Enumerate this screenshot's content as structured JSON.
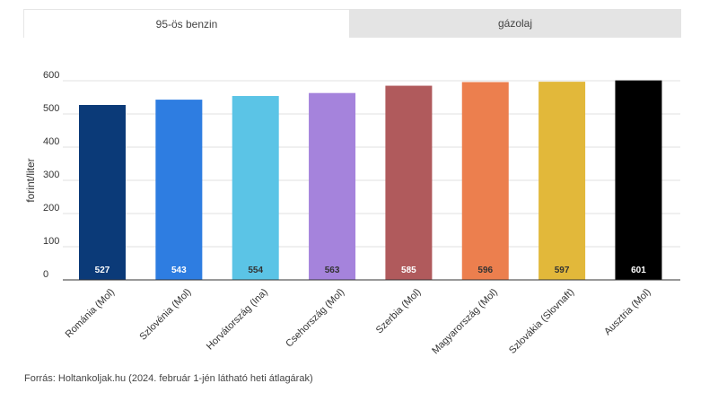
{
  "tabs": [
    {
      "label": "95-ös benzin",
      "active": true
    },
    {
      "label": "gázolaj",
      "active": false
    }
  ],
  "chart_data": {
    "type": "bar",
    "ylabel": "forint/liter",
    "ylim": [
      0,
      600
    ],
    "yticks": [
      0,
      100,
      200,
      300,
      400,
      500,
      600
    ],
    "grid": true,
    "categories": [
      "Románia (Mol)",
      "Szlovénia (Mol)",
      "Horvátország (Ina)",
      "Csehország (Mol)",
      "Szerbia (Mol)",
      "Magyarország (Mol)",
      "Szlovákia (Slovnaft)",
      "Ausztria (Mol)"
    ],
    "values": [
      527,
      543,
      554,
      563,
      585,
      596,
      597,
      601
    ],
    "colors": [
      "#0b3a78",
      "#2e7de1",
      "#5bc4e6",
      "#a583dc",
      "#b05a5c",
      "#ec7f4e",
      "#e2b83a",
      "#000000"
    ],
    "label_colors": [
      "#ffffff",
      "#ffffff",
      "#333333",
      "#333333",
      "#ffffff",
      "#333333",
      "#333333",
      "#ffffff"
    ]
  },
  "footer": {
    "source": "Forrás: Holtankoljak.hu (2024. február 1-jén látható heti átlagárak)"
  }
}
